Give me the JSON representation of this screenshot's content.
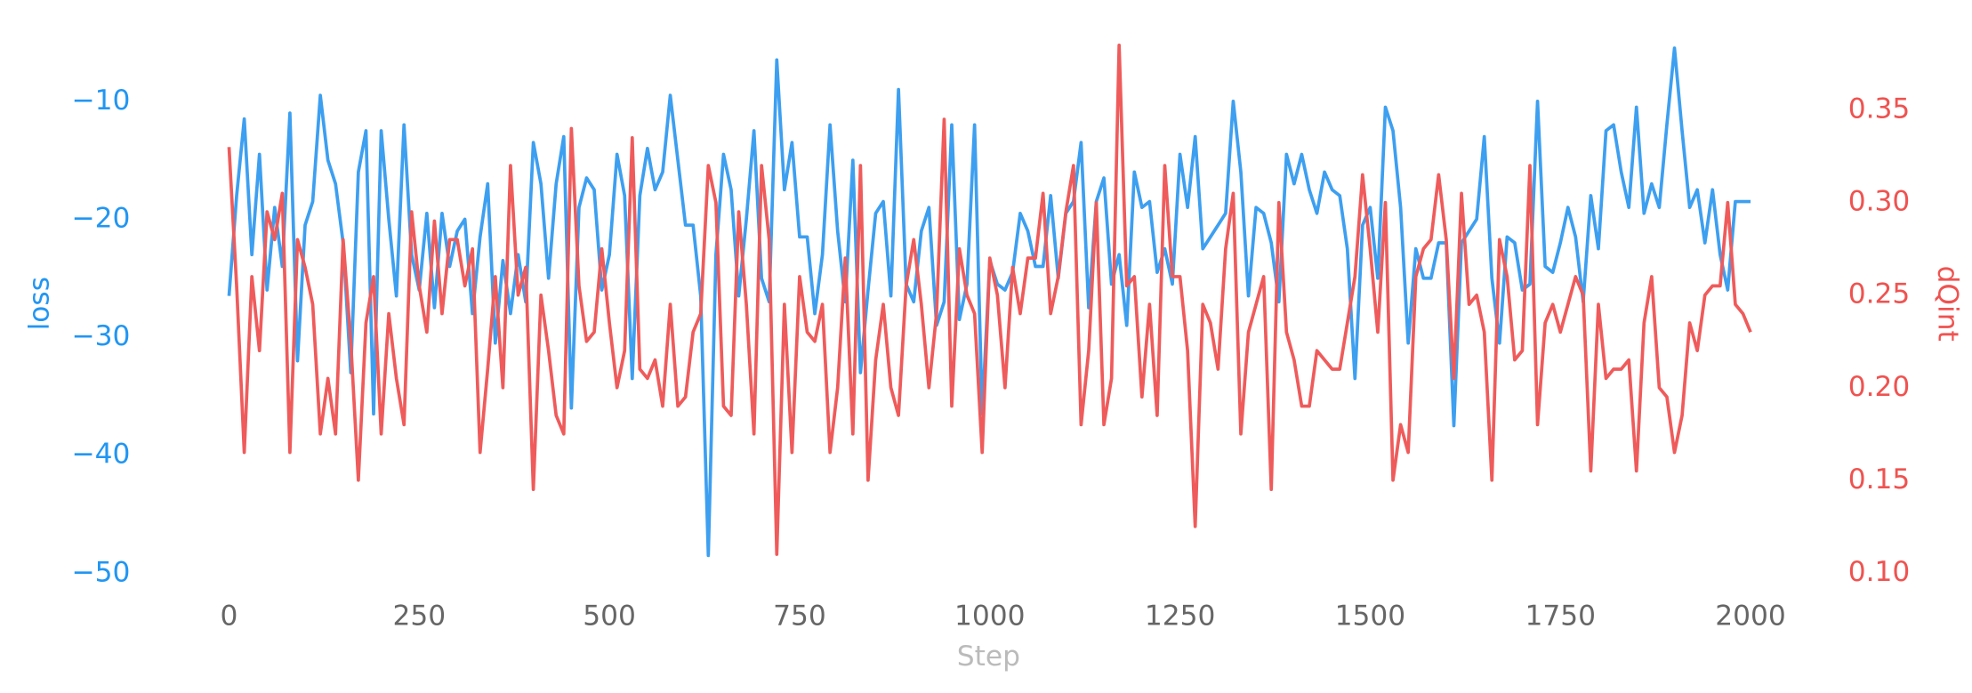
{
  "chart_data": {
    "type": "line",
    "xlabel": "Step",
    "ylabel": "loss",
    "y2label": "dQint",
    "x": [
      0,
      10,
      20,
      30,
      40,
      50,
      60,
      70,
      80,
      90,
      100,
      110,
      120,
      130,
      140,
      150,
      160,
      170,
      180,
      190,
      200,
      210,
      220,
      230,
      240,
      250,
      260,
      270,
      280,
      290,
      300,
      310,
      320,
      330,
      340,
      350,
      360,
      370,
      380,
      390,
      400,
      410,
      420,
      430,
      440,
      450,
      460,
      470,
      480,
      490,
      500,
      510,
      520,
      530,
      540,
      550,
      560,
      570,
      580,
      590,
      600,
      610,
      620,
      630,
      640,
      650,
      660,
      670,
      680,
      690,
      700,
      710,
      720,
      730,
      740,
      750,
      760,
      770,
      780,
      790,
      800,
      810,
      820,
      830,
      840,
      850,
      860,
      870,
      880,
      890,
      900,
      910,
      920,
      930,
      940,
      950,
      960,
      970,
      980,
      990,
      1000,
      1010,
      1020,
      1030,
      1040,
      1050,
      1060,
      1070,
      1080,
      1090,
      1100,
      1110,
      1120,
      1130,
      1140,
      1150,
      1160,
      1170,
      1180,
      1190,
      1200,
      1210,
      1220,
      1230,
      1240,
      1250,
      1260,
      1270,
      1280,
      1290,
      1300,
      1310,
      1320,
      1330,
      1340,
      1350,
      1360,
      1370,
      1380,
      1390,
      1400,
      1410,
      1420,
      1430,
      1440,
      1450,
      1460,
      1470,
      1480,
      1490,
      1500,
      1510,
      1520,
      1530,
      1540,
      1550,
      1560,
      1570,
      1580,
      1590,
      1600,
      1610,
      1620,
      1630,
      1640,
      1650,
      1660,
      1670,
      1680,
      1690,
      1700,
      1710,
      1720,
      1730,
      1740,
      1750,
      1760,
      1770,
      1780,
      1790,
      1800,
      1810,
      1820,
      1830,
      1840,
      1850,
      1860,
      1870,
      1880,
      1890,
      1900,
      1910,
      1920,
      1930,
      1940,
      1950,
      1960,
      1970,
      1980,
      1990,
      2000
    ],
    "series": [
      {
        "name": "loss",
        "color": "#3d9ff0",
        "axis": "y",
        "values": [
          -26.5,
          -18,
          -11.5,
          -23,
          -14.5,
          -26,
          -19,
          -24,
          -11,
          -32,
          -20.5,
          -18.5,
          -9.5,
          -15,
          -17,
          -22,
          -33,
          -16,
          -12.5,
          -36.5,
          -12.5,
          -20,
          -26.5,
          -12,
          -23,
          -26,
          -19.5,
          -27.5,
          -19.5,
          -24,
          -21,
          -20,
          -28,
          -21.5,
          -17,
          -30.5,
          -23.5,
          -28,
          -23,
          -27,
          -13.5,
          -17,
          -25,
          -17,
          -13,
          -36,
          -19,
          -16.5,
          -17.5,
          -26,
          -23,
          -14.5,
          -18,
          -33.5,
          -18,
          -14,
          -17.5,
          -16,
          -9.5,
          -15,
          -20.5,
          -20.5,
          -26.5,
          -48.5,
          -23,
          -14.5,
          -17.5,
          -26.5,
          -20,
          -12.5,
          -25,
          -27,
          -6.5,
          -17.5,
          -13.5,
          -21.5,
          -21.5,
          -28,
          -23,
          -12,
          -21,
          -27,
          -15,
          -33,
          -26,
          -19.5,
          -18.5,
          -26.5,
          -9,
          -25.5,
          -27,
          -21,
          -19,
          -29,
          -27,
          -12,
          -28.5,
          -25.5,
          -12,
          -36.5,
          -23.5,
          -25.5,
          -26,
          -24.5,
          -19.5,
          -21,
          -24,
          -24,
          -18,
          -25,
          -19.5,
          -18.5,
          -13.5,
          -27.5,
          -18.5,
          -16.5,
          -25.5,
          -23,
          -29,
          -16,
          -19,
          -18.5,
          -24.5,
          -22.5,
          -25.5,
          -14.5,
          -19,
          -13,
          -22.5,
          -21.5,
          -20.5,
          -19.5,
          -10,
          -16,
          -26.5,
          -19,
          -19.5,
          -22,
          -27,
          -14.5,
          -17,
          -14.5,
          -17.5,
          -19.5,
          -16,
          -17.5,
          -18,
          -22.5,
          -33.5,
          -20.5,
          -19,
          -25,
          -10.5,
          -12.5,
          -19,
          -30.5,
          -22.5,
          -25,
          -25,
          -22,
          -22,
          -37.5,
          -22,
          -21,
          -20,
          -13,
          -25,
          -30.5,
          -21.5,
          -22,
          -26,
          -25.5,
          -10,
          -24,
          -24.5,
          -22,
          -19,
          -21.5,
          -27,
          -18,
          -22.5,
          -12.5,
          -12,
          -16,
          -19,
          -10.5,
          -19.5,
          -17,
          -19,
          -12,
          -5.5,
          -12.5,
          -19,
          -17.5,
          -22,
          -17.5,
          -23,
          -26,
          -18.5,
          -18.5,
          -18.5
        ]
      },
      {
        "name": "dQint",
        "color": "#ef5b5b",
        "axis": "y2",
        "values": [
          0.33,
          0.255,
          0.165,
          0.26,
          0.22,
          0.295,
          0.28,
          0.305,
          0.165,
          0.28,
          0.265,
          0.245,
          0.175,
          0.205,
          0.175,
          0.28,
          0.225,
          0.15,
          0.235,
          0.26,
          0.175,
          0.24,
          0.205,
          0.18,
          0.295,
          0.255,
          0.23,
          0.29,
          0.24,
          0.28,
          0.28,
          0.255,
          0.275,
          0.165,
          0.21,
          0.26,
          0.2,
          0.32,
          0.25,
          0.265,
          0.145,
          0.25,
          0.22,
          0.185,
          0.175,
          0.34,
          0.255,
          0.225,
          0.23,
          0.275,
          0.235,
          0.2,
          0.22,
          0.335,
          0.21,
          0.205,
          0.215,
          0.19,
          0.245,
          0.19,
          0.195,
          0.23,
          0.24,
          0.32,
          0.3,
          0.19,
          0.185,
          0.295,
          0.245,
          0.175,
          0.32,
          0.28,
          0.11,
          0.245,
          0.165,
          0.26,
          0.23,
          0.225,
          0.245,
          0.165,
          0.2,
          0.27,
          0.175,
          0.32,
          0.15,
          0.215,
          0.245,
          0.2,
          0.185,
          0.255,
          0.28,
          0.245,
          0.2,
          0.24,
          0.345,
          0.19,
          0.275,
          0.25,
          0.24,
          0.165,
          0.27,
          0.25,
          0.2,
          0.265,
          0.24,
          0.27,
          0.27,
          0.305,
          0.24,
          0.26,
          0.295,
          0.32,
          0.18,
          0.22,
          0.3,
          0.18,
          0.205,
          0.385,
          0.255,
          0.26,
          0.195,
          0.245,
          0.185,
          0.32,
          0.26,
          0.26,
          0.22,
          0.125,
          0.245,
          0.235,
          0.21,
          0.275,
          0.305,
          0.175,
          0.23,
          0.245,
          0.26,
          0.145,
          0.3,
          0.23,
          0.215,
          0.19,
          0.19,
          0.22,
          0.215,
          0.21,
          0.21,
          0.235,
          0.26,
          0.315,
          0.275,
          0.23,
          0.3,
          0.15,
          0.18,
          0.165,
          0.26,
          0.275,
          0.28,
          0.315,
          0.28,
          0.205,
          0.305,
          0.245,
          0.25,
          0.23,
          0.15,
          0.28,
          0.26,
          0.215,
          0.22,
          0.32,
          0.18,
          0.235,
          0.245,
          0.23,
          0.245,
          0.26,
          0.25,
          0.155,
          0.245,
          0.205,
          0.21,
          0.21,
          0.215,
          0.155,
          0.235,
          0.26,
          0.2,
          0.195,
          0.165,
          0.185,
          0.235,
          0.22,
          0.25,
          0.255,
          0.255,
          0.3,
          0.245,
          0.24,
          0.23
        ]
      }
    ],
    "xlim": [
      -100,
      2100
    ],
    "xticks": [
      0,
      250,
      500,
      750,
      1000,
      1250,
      1500,
      1750,
      2000
    ],
    "ylim": [
      -52,
      -4
    ],
    "yticks": [
      {
        "value": -50,
        "label": "−50"
      },
      {
        "value": -40,
        "label": "−40"
      },
      {
        "value": -30,
        "label": "−30"
      },
      {
        "value": -20,
        "label": "−20"
      },
      {
        "value": -10,
        "label": "−10"
      }
    ],
    "y2lim": [
      0.087,
      0.393
    ],
    "y2ticks": [
      {
        "value": 0.1,
        "label": "0.10"
      },
      {
        "value": 0.15,
        "label": "0.15"
      },
      {
        "value": 0.2,
        "label": "0.20"
      },
      {
        "value": 0.25,
        "label": "0.25"
      },
      {
        "value": 0.3,
        "label": "0.30"
      },
      {
        "value": 0.35,
        "label": "0.35"
      }
    ],
    "grid": false
  }
}
